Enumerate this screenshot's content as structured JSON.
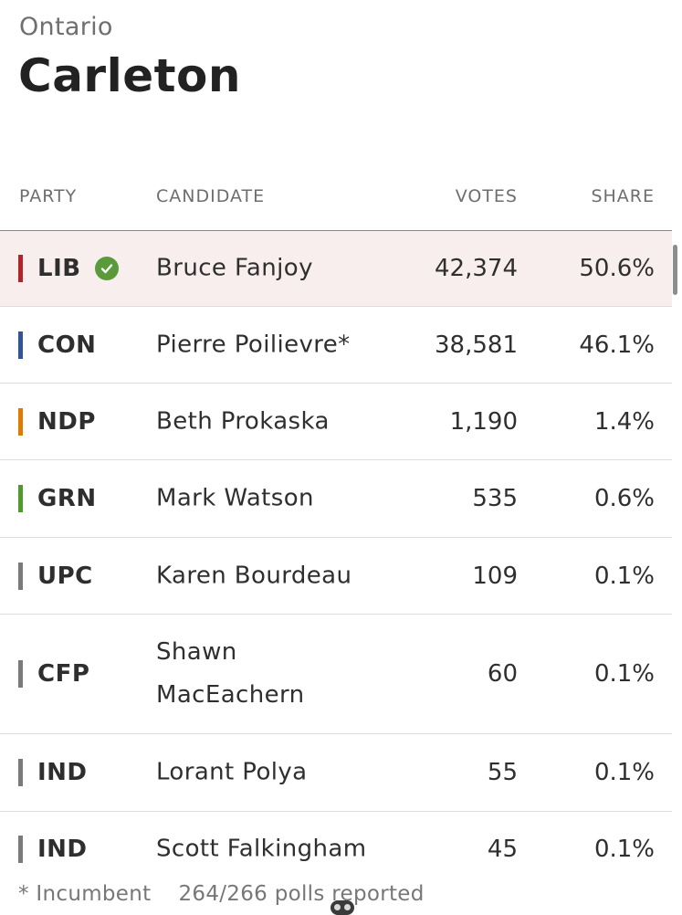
{
  "header": {
    "province": "Ontario",
    "riding": "Carleton"
  },
  "table": {
    "columns": {
      "party": "PARTY",
      "candidate": "CANDIDATE",
      "votes": "VOTES",
      "share": "SHARE"
    },
    "rows": [
      {
        "party": "LIB",
        "candidate": "Bruce Fanjoy",
        "votes": "42,374",
        "share": "50.6%",
        "color": "#b0242c",
        "winner": true
      },
      {
        "party": "CON",
        "candidate": "Pierre Poilievre*",
        "votes": "38,581",
        "share": "46.1%",
        "color": "#2f5597",
        "winner": false
      },
      {
        "party": "NDP",
        "candidate": "Beth Prokaska",
        "votes": "1,190",
        "share": "1.4%",
        "color": "#e07b00",
        "winner": false
      },
      {
        "party": "GRN",
        "candidate": "Mark Watson",
        "votes": "535",
        "share": "0.6%",
        "color": "#4e9a2f",
        "winner": false
      },
      {
        "party": "UPC",
        "candidate": "Karen Bourdeau",
        "votes": "109",
        "share": "0.1%",
        "color": "#7a7a7a",
        "winner": false
      },
      {
        "party": "CFP",
        "candidate": "Shawn MacEachern",
        "votes": "60",
        "share": "0.1%",
        "color": "#7a7a7a",
        "winner": false
      },
      {
        "party": "IND",
        "candidate": "Lorant Polya",
        "votes": "55",
        "share": "0.1%",
        "color": "#7a7a7a",
        "winner": false
      },
      {
        "party": "IND",
        "candidate": "Scott Falkingham",
        "votes": "45",
        "share": "0.1%",
        "color": "#7a7a7a",
        "winner": false
      }
    ]
  },
  "footer": {
    "incumbent_note": "* Incumbent",
    "polls_reported": "264/266 polls reported"
  },
  "icons": {
    "winner": "check-circle-icon"
  }
}
